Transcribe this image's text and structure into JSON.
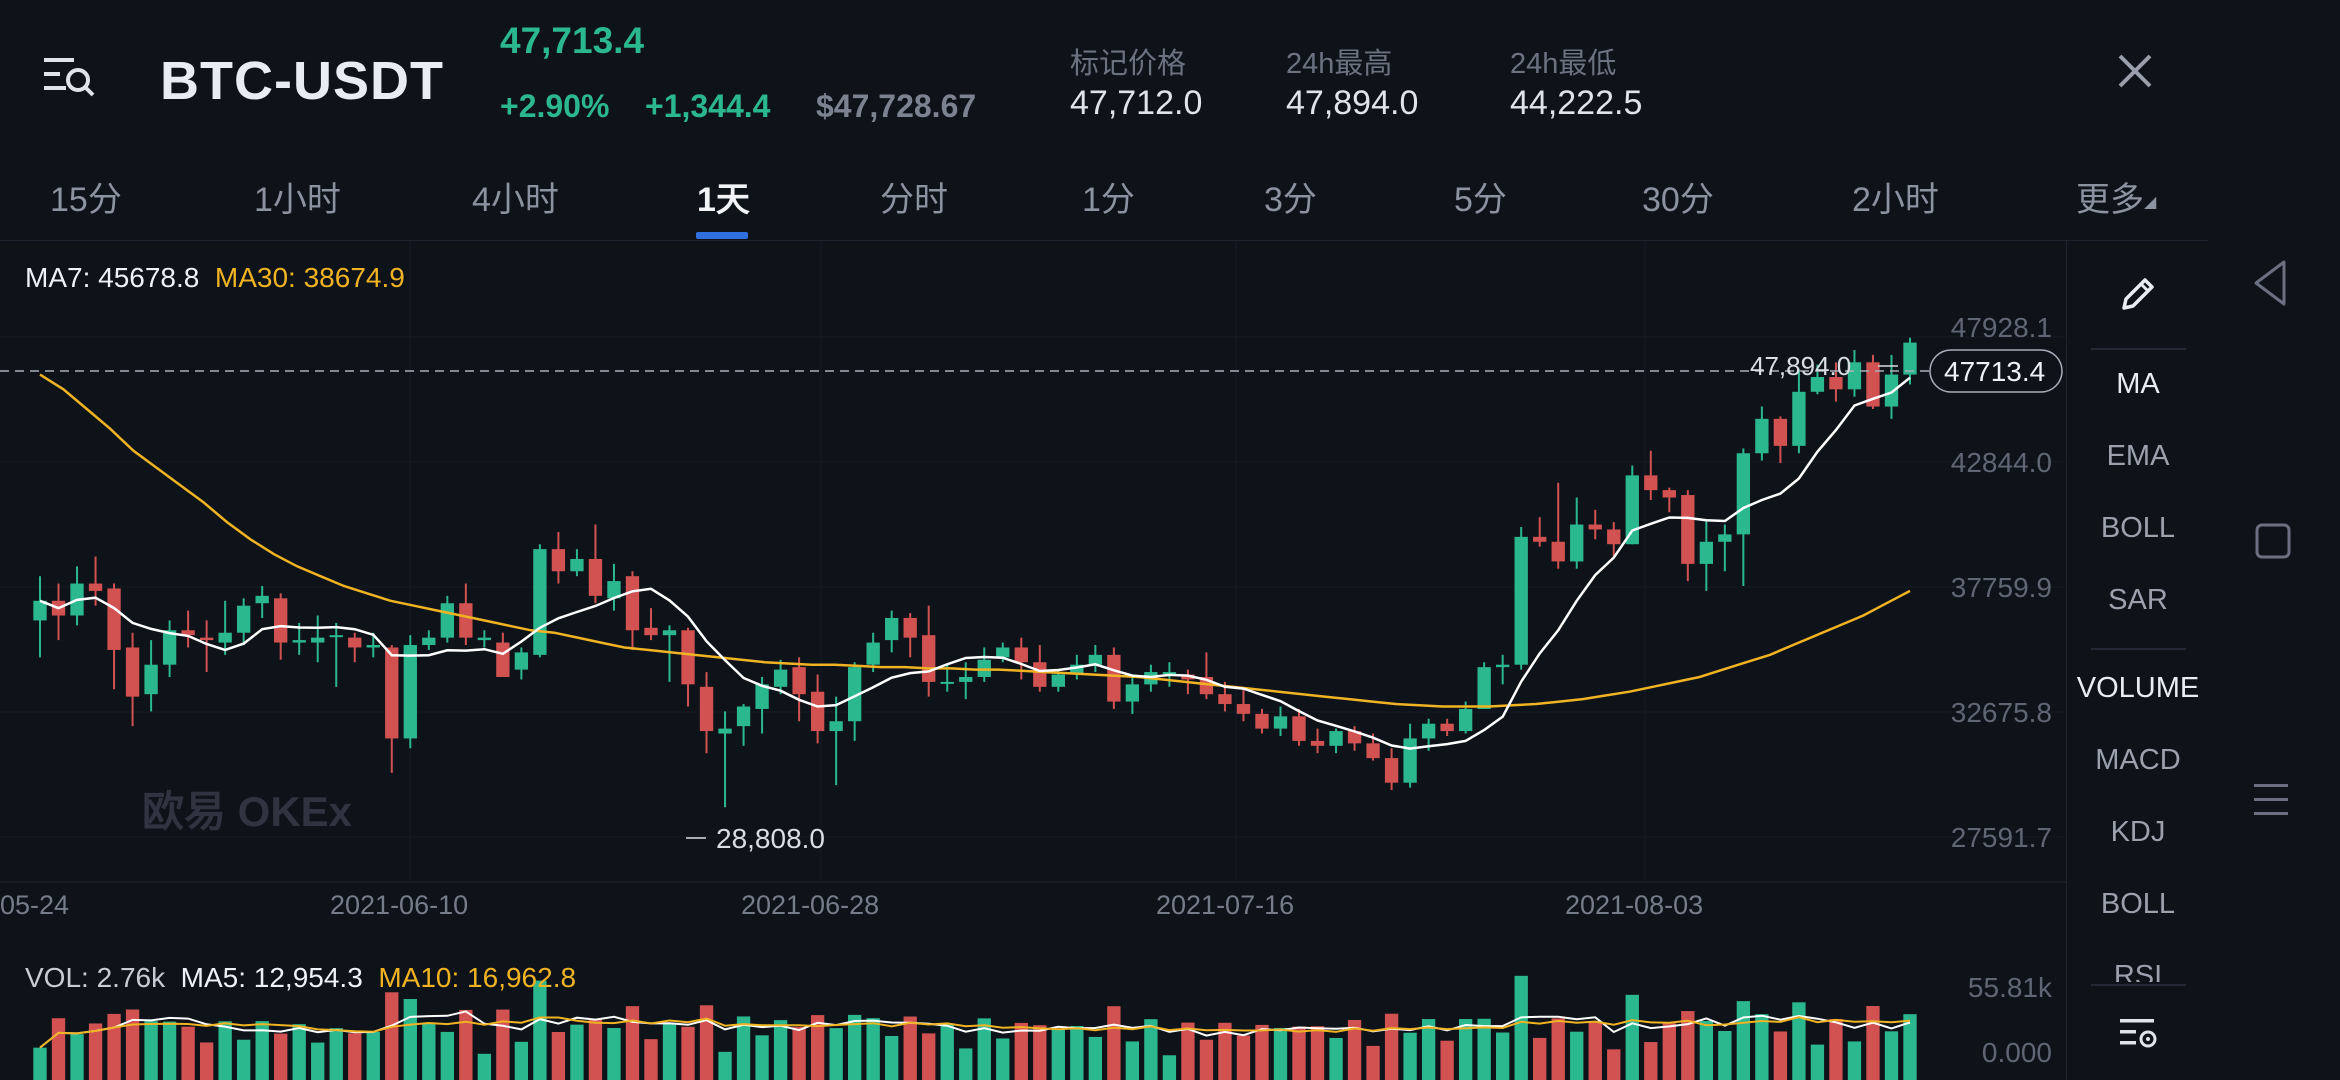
{
  "header": {
    "pair": "BTC-USDT",
    "last_price": "47,713.4",
    "change_pct": "+2.90%",
    "change_abs": "+1,344.4",
    "usd_price": "$47,728.67",
    "stats": [
      {
        "label": "标记价格",
        "value": "47,712.0"
      },
      {
        "label": "24h最高",
        "value": "47,894.0"
      },
      {
        "label": "24h最低",
        "value": "44,222.5"
      }
    ]
  },
  "tabs": [
    "15分",
    "1小时",
    "4小时",
    "1天",
    "分时",
    "1分",
    "3分",
    "5分",
    "30分",
    "2小时",
    "更多"
  ],
  "active_tab": "1天",
  "indicator_legend": {
    "ma7": "MA7: 45678.8",
    "ma30": "MA30: 38674.9",
    "vol": "VOL: 2.76k",
    "ma5": "MA5: 12,954.3",
    "ma10": "MA10: 16,962.8"
  },
  "watermark": "欧易 OKEx",
  "price_tag": "47713.4",
  "high_marker": "47,894.0",
  "low_marker": "28,808.0",
  "toolbar": {
    "items": [
      "MA",
      "EMA",
      "BOLL",
      "SAR",
      "VOLUME",
      "MACD",
      "KDJ",
      "BOLL",
      "RSI"
    ],
    "active": [
      "MA",
      "VOLUME"
    ]
  },
  "colors": {
    "up": "#2bb88f",
    "down": "#d25252",
    "ma7": "#ffffff",
    "ma30": "#f0b322",
    "background": "#0e1219"
  },
  "icons": [
    "menu-search-icon",
    "close-icon",
    "pencil-icon",
    "settings-list-icon",
    "back-triangle-icon",
    "home-square-icon",
    "recents-lines-icon"
  ],
  "chart_data": {
    "type": "candlestick",
    "timeframe": "1天",
    "y_ticks": [
      "47928.1",
      "42844.0",
      "37759.9",
      "32675.8",
      "27591.7"
    ],
    "ylim": [
      27591.7,
      47928.1
    ],
    "x_ticks": [
      "05-24",
      "2021-06-10",
      "2021-06-28",
      "2021-07-16",
      "2021-08-03"
    ],
    "volume_ticks": [
      "55.81k",
      "0.000"
    ],
    "high": 47894.0,
    "low": 28808.0,
    "last": 47713.4
  }
}
